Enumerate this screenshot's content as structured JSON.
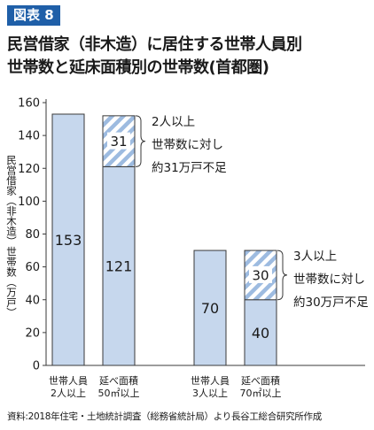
{
  "badge": "図表 8",
  "title_lines": [
    "民営借家（非木造）に居住する世帯人員別",
    "世帯数と延床面積別の世帯数(首都圏)"
  ],
  "source": "資料:2018年住宅・土地統計調査（総務省統計局）より長谷工総合研究所作成",
  "chart_data": {
    "type": "bar",
    "title": "民営借家（非木造）に居住する世帯人員別世帯数と延床面積別の世帯数(首都圏)",
    "ylabel": "民営借家（非木造）世帯数（万戸）",
    "ylim": [
      0,
      160
    ],
    "yticks": [
      0,
      20,
      40,
      60,
      80,
      100,
      120,
      140,
      160
    ],
    "grid": false,
    "colors": {
      "bar": "#c6d7ed",
      "hatch": "#9dbbe0",
      "edge": "#3a3a3a"
    },
    "bars": [
      {
        "category": [
          "世帯人員",
          "2人以上"
        ],
        "value": 153,
        "value_label": "153"
      },
      {
        "category": [
          "延べ面積",
          "50㎡以上"
        ],
        "value": 121,
        "value_label": "121",
        "shortfall": 31,
        "shortfall_label": "31",
        "annotation": [
          "2人以上",
          "世帯数に対し",
          "約31万戸不足"
        ]
      },
      {
        "category": [
          "世帯人員",
          "3人以上"
        ],
        "value": 70,
        "value_label": "70"
      },
      {
        "category": [
          "延べ面積",
          "70㎡以上"
        ],
        "value": 40,
        "value_label": "40",
        "shortfall": 30,
        "shortfall_label": "30",
        "annotation": [
          "3人以上",
          "世帯数に対し",
          "約30万戸不足"
        ]
      }
    ]
  }
}
